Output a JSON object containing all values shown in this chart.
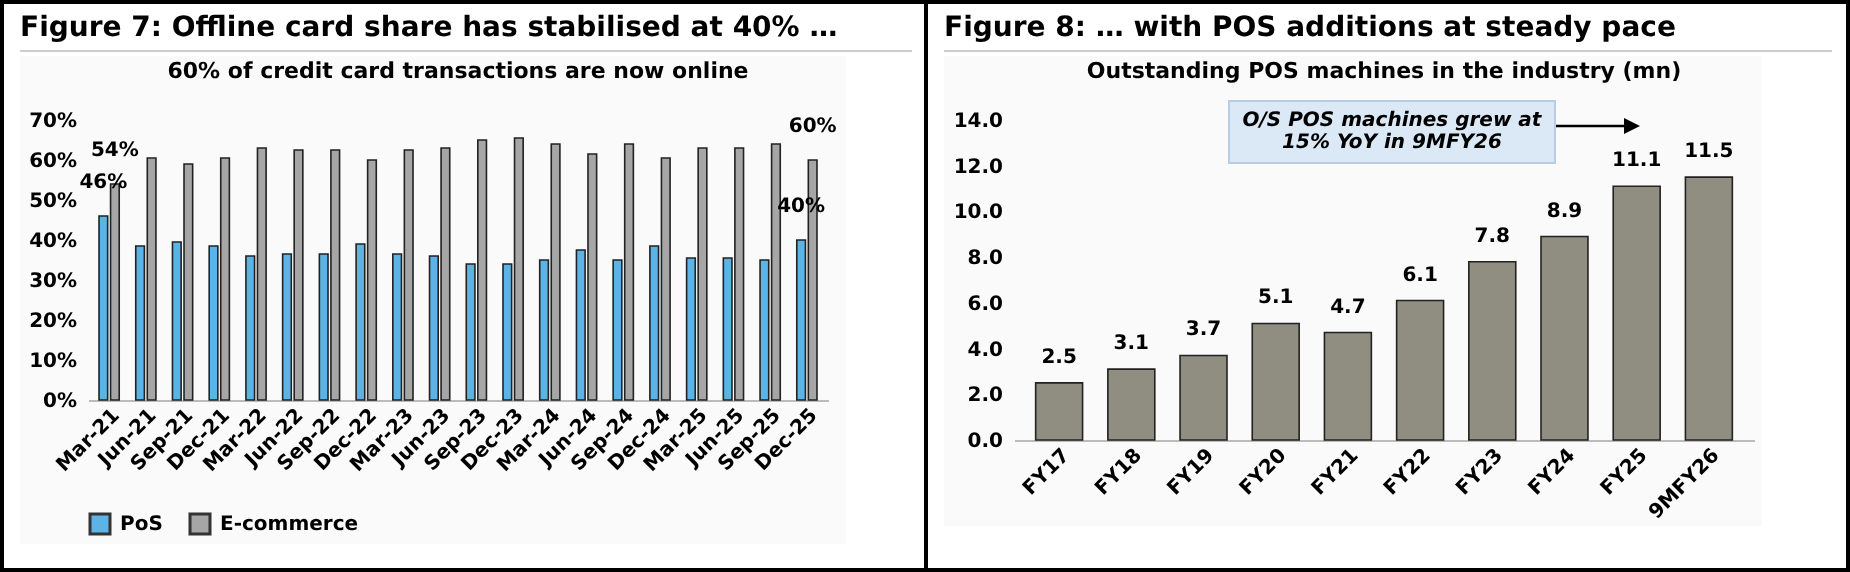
{
  "chart_data": [
    {
      "type": "bar",
      "title": "Figure 7: Offline card share has stabilised at 40% …",
      "subtitle": "60% of credit card transactions are now online",
      "categories": [
        "Mar-21",
        "Jun-21",
        "Sep-21",
        "Dec-21",
        "Mar-22",
        "Jun-22",
        "Sep-22",
        "Dec-22",
        "Mar-23",
        "Jun-23",
        "Sep-23",
        "Dec-23",
        "Mar-24",
        "Jun-24",
        "Sep-24",
        "Dec-24",
        "Mar-25",
        "Jun-25",
        "Sep-25",
        "Dec-25"
      ],
      "series": [
        {
          "name": "PoS",
          "color": "#5bb4e5",
          "values": [
            46,
            38.5,
            39.5,
            38.5,
            36,
            36.5,
            36.5,
            39,
            36.5,
            36,
            34,
            34,
            35,
            37.5,
            35,
            38.5,
            35.5,
            35.5,
            35,
            40
          ],
          "value_labels": [
            "46%",
            null,
            null,
            null,
            null,
            null,
            null,
            null,
            null,
            null,
            null,
            null,
            null,
            null,
            null,
            null,
            null,
            null,
            null,
            "40%"
          ]
        },
        {
          "name": "E-commerce",
          "color": "#a6a6a6",
          "values": [
            54,
            60.5,
            59,
            60.5,
            63,
            62.5,
            62.5,
            60,
            62.5,
            63,
            65,
            65.5,
            64,
            61.5,
            64,
            60.5,
            63,
            63,
            64,
            60
          ],
          "value_labels": [
            "54%",
            null,
            null,
            null,
            null,
            null,
            null,
            null,
            null,
            null,
            null,
            null,
            null,
            null,
            null,
            null,
            null,
            null,
            null,
            "60%"
          ]
        }
      ],
      "ylim": [
        0,
        70
      ],
      "yticks": [
        {
          "value": 0,
          "label": "0%"
        },
        {
          "value": 10,
          "label": "10%"
        },
        {
          "value": 20,
          "label": "20%"
        },
        {
          "value": 30,
          "label": "30%"
        },
        {
          "value": 40,
          "label": "40%"
        },
        {
          "value": 50,
          "label": "50%"
        },
        {
          "value": 60,
          "label": "60%"
        },
        {
          "value": 70,
          "label": "70%"
        }
      ],
      "legend": "bottom"
    },
    {
      "type": "bar",
      "title": "Figure 8: … with POS additions at steady pace",
      "subtitle": "Outstanding POS machines in the industry (mn)",
      "categories": [
        "FY17",
        "FY18",
        "FY19",
        "FY20",
        "FY21",
        "FY22",
        "FY23",
        "FY24",
        "FY25",
        "9MFY26"
      ],
      "values": [
        2.5,
        3.1,
        3.7,
        5.1,
        4.7,
        6.1,
        7.8,
        8.9,
        11.1,
        11.5
      ],
      "color": "#8f8e80",
      "data_labels": true,
      "ylim": [
        0,
        14
      ],
      "yticks": [
        {
          "value": 0,
          "label": "0.0"
        },
        {
          "value": 2,
          "label": "2.0"
        },
        {
          "value": 4,
          "label": "4.0"
        },
        {
          "value": 6,
          "label": "6.0"
        },
        {
          "value": 8,
          "label": "8.0"
        },
        {
          "value": 10,
          "label": "10.0"
        },
        {
          "value": 12,
          "label": "12.0"
        },
        {
          "value": 14,
          "label": "14.0"
        }
      ],
      "annotations": [
        "O/S POS machines grew at 15% YoY in 9MFY26"
      ]
    }
  ]
}
